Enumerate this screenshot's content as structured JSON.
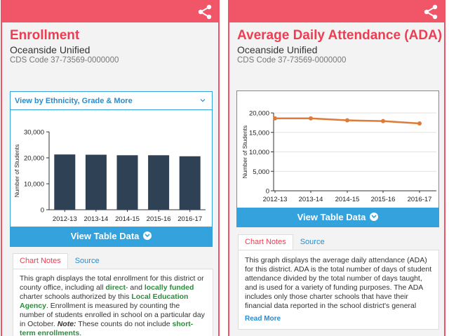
{
  "colors": {
    "accent": "#ef5466",
    "title": "#ec3e52",
    "blue": "#34a2dd",
    "bar": "#2f4155",
    "line": "#dd7b3a",
    "link_green": "#2e8b3c"
  },
  "left": {
    "title": "Enrollment",
    "district": "Oceanside Unified",
    "cds": "CDS Code 37-73569-0000000",
    "share_icon": "share-icon",
    "dropdown_label": "View by Ethnicity, Grade & More",
    "table_button": "View Table Data",
    "tabs": [
      "Chart Notes",
      "Source"
    ],
    "notes": {
      "p1": "This graph displays the total enrollment for this district or county office, including all ",
      "l1": "direct",
      "p2": "- and ",
      "l2": "locally funded",
      "p3": " charter schools authorized by this ",
      "l3": "Local Education Agency",
      "p4": ". Enrollment is measured by counting the number of students enrolled in school on a particular day in October. ",
      "note_label": "Note:",
      "p5": " These counts do not include ",
      "l4": "short-term enrollments",
      "p6": "."
    }
  },
  "right": {
    "title": "Average Daily Attendance (ADA)",
    "district": "Oceanside Unified",
    "cds": "CDS Code 37-73569-0000000",
    "share_icon": "share-icon",
    "table_button": "View Table Data",
    "tabs": [
      "Chart Notes",
      "Source"
    ],
    "notes": "This graph displays the average daily attendance (ADA) for this district. ADA is the total number of days of student attendance divided by the total number of days taught, and is used for a variety of funding purposes. The ADA includes only those charter schools that have their financial data reported in the school district's general fund, without regard",
    "read_more": "Read More"
  },
  "chart_data": [
    {
      "type": "bar",
      "categories": [
        "2012-13",
        "2013-14",
        "2014-15",
        "2015-16",
        "2016-17"
      ],
      "values": [
        21300,
        21200,
        21000,
        21000,
        20600
      ],
      "ylabel": "Number of Students",
      "ylim": [
        0,
        30000
      ],
      "yticks": [
        "0",
        "10,000",
        "20,000",
        "30,000"
      ],
      "grid": false
    },
    {
      "type": "line",
      "categories": [
        "2012-13",
        "2013-14",
        "2014-15",
        "2015-16",
        "2016-17"
      ],
      "values": [
        18600,
        18600,
        18100,
        17900,
        17300
      ],
      "ylabel": "Number of Students",
      "ylim": [
        0,
        20000
      ],
      "yticks": [
        "0",
        "5,000",
        "10,000",
        "15,000",
        "20,000"
      ],
      "grid": true
    }
  ]
}
